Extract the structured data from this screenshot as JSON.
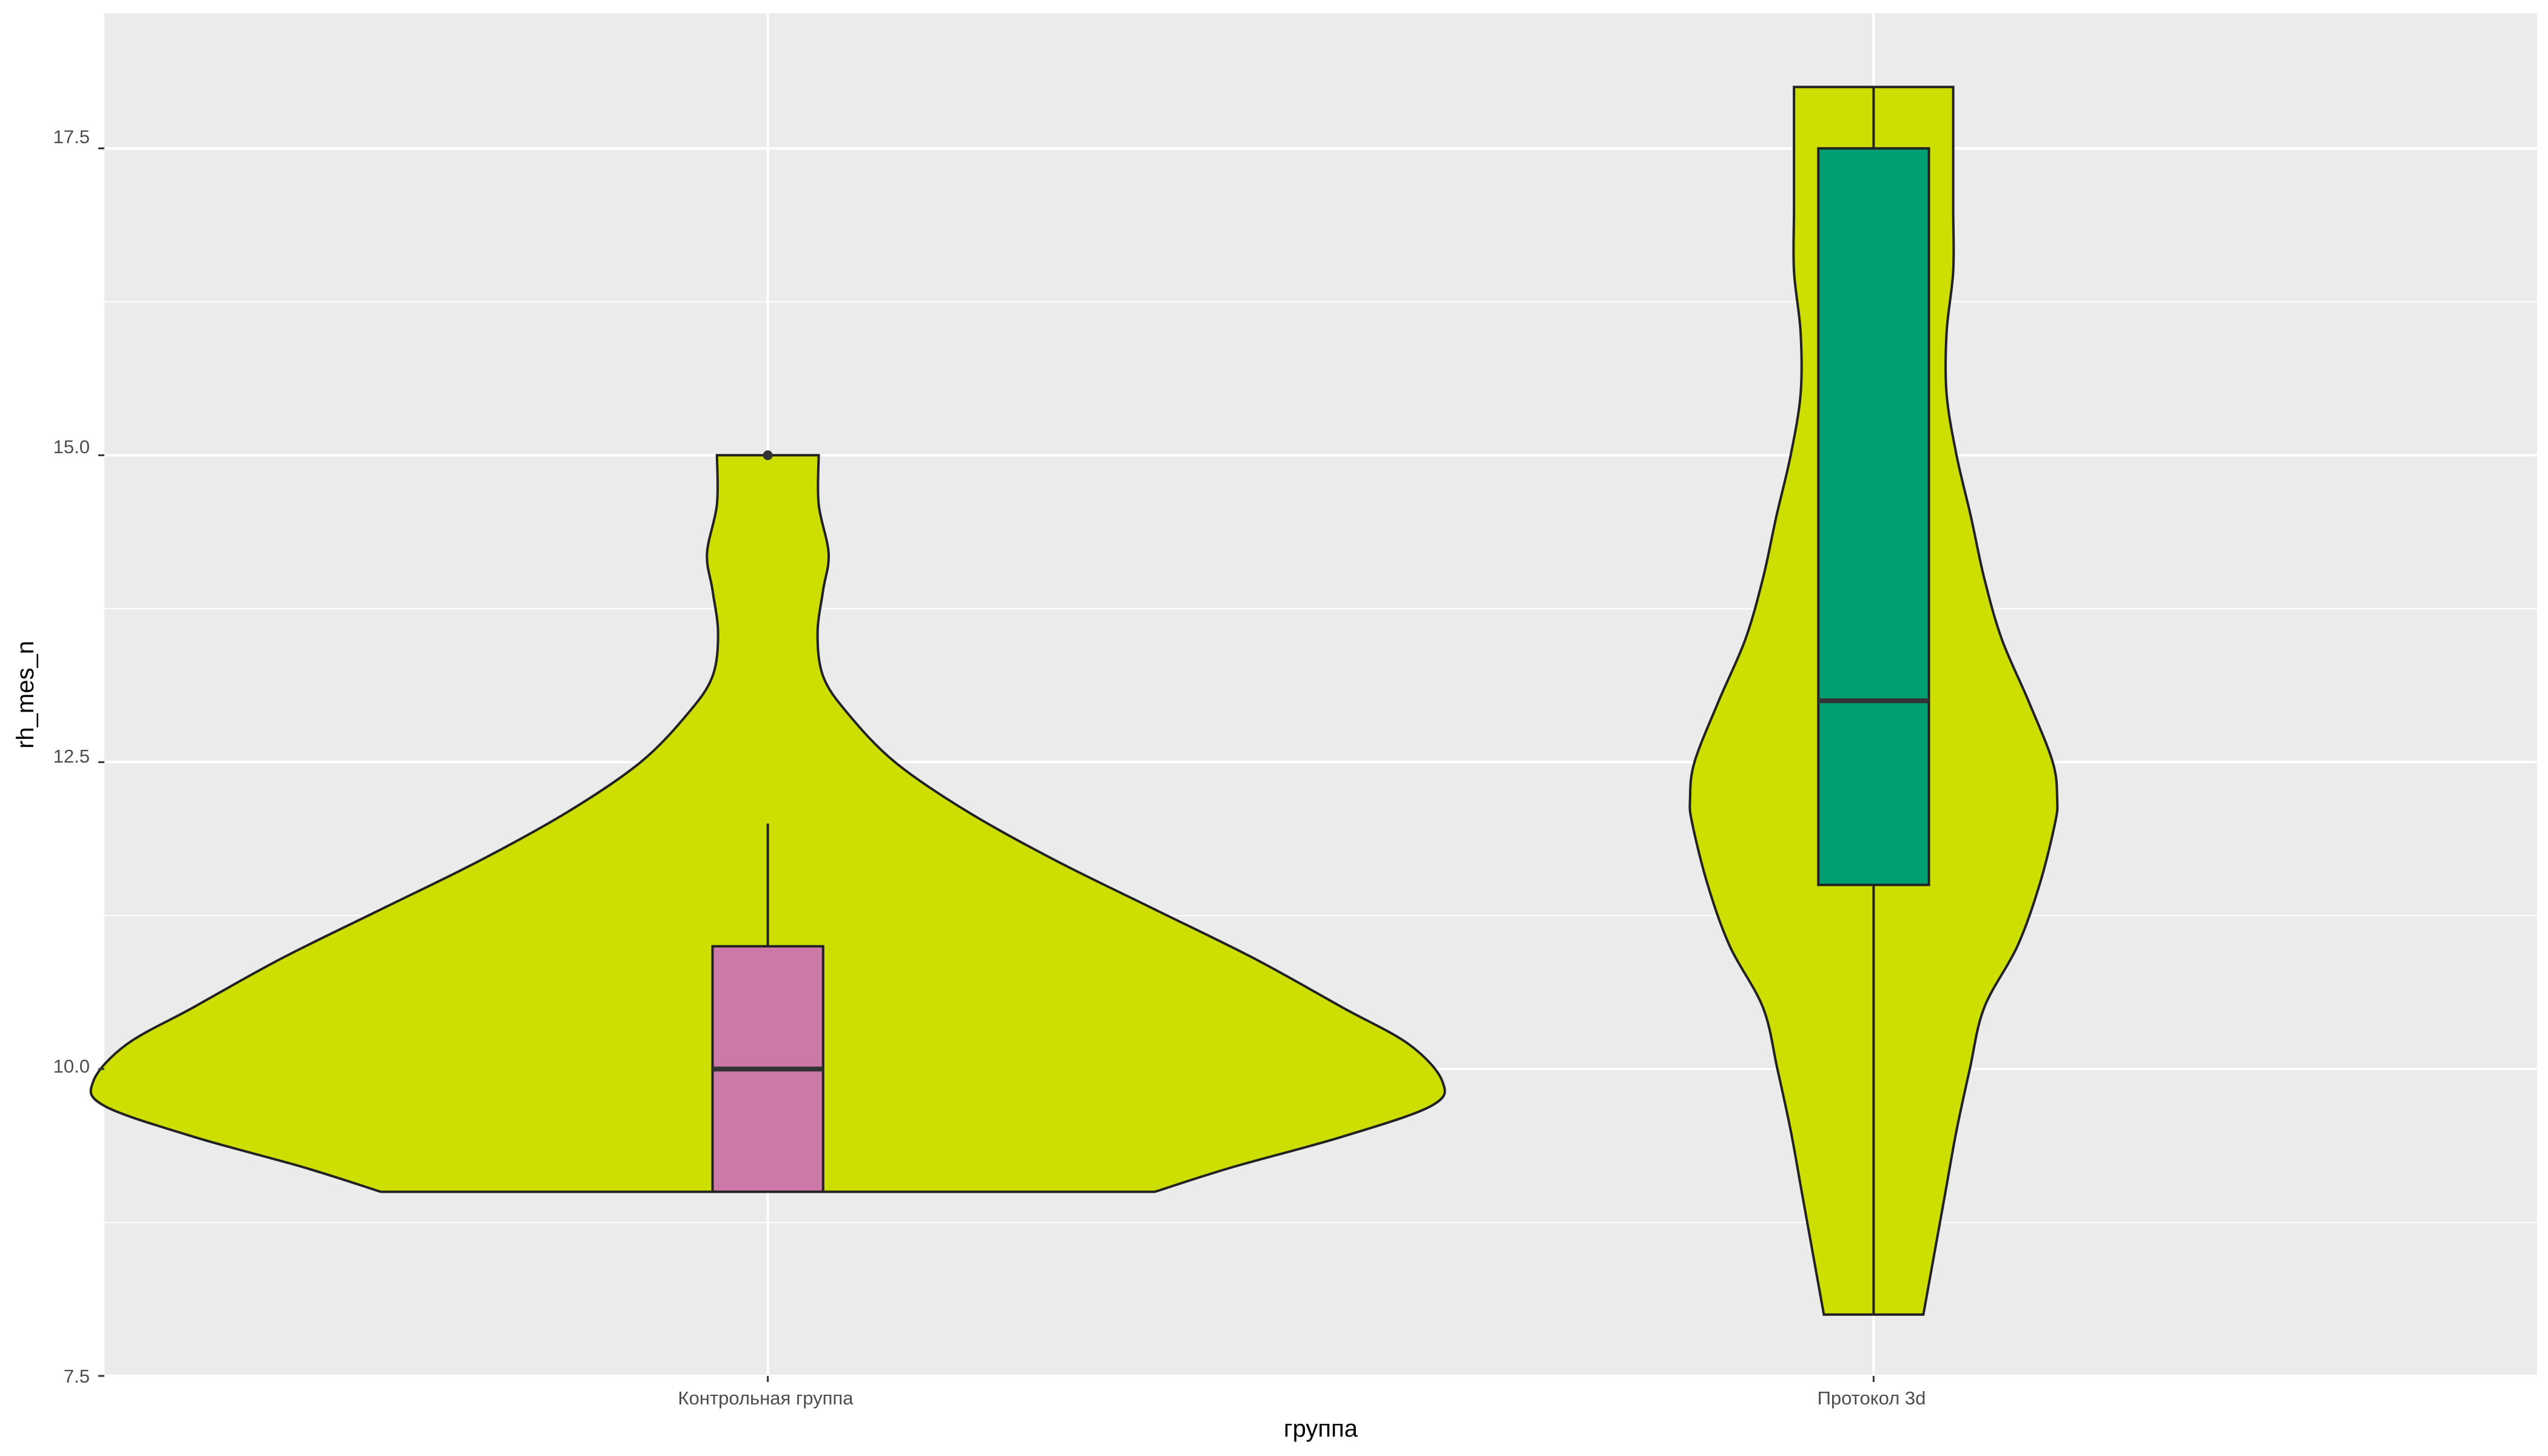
{
  "chart_data": {
    "type": "violin",
    "title": "",
    "xlabel": "группа",
    "ylabel": "rh_mes_n",
    "ylim": [
      7.5,
      18.6
    ],
    "yticks": [
      "7.5",
      "10.0",
      "12.5",
      "15.0",
      "17.5"
    ],
    "grid": true,
    "legend": "none",
    "colors": {
      "panel_bg": "#ebebeb",
      "grid": "#ffffff",
      "violin_fill": "#cddf00",
      "outline": "#222222",
      "box_control": "#cc79a7",
      "box_protocol": "#009e73"
    },
    "categories": [
      "Контрольная группа",
      "Протокол 3d"
    ],
    "groups": [
      {
        "name": "Контрольная группа",
        "violin": {
          "y": [
            9.0,
            9.2,
            9.45,
            9.7,
            9.9,
            10.2,
            10.5,
            10.9,
            11.3,
            11.7,
            12.1,
            12.5,
            12.9,
            13.2,
            13.55,
            13.9,
            14.2,
            14.6,
            15.0
          ],
          "halfwidth": [
            0.35,
            0.42,
            0.52,
            0.6,
            0.61,
            0.58,
            0.52,
            0.44,
            0.35,
            0.26,
            0.18,
            0.115,
            0.072,
            0.05,
            0.045,
            0.05,
            0.055,
            0.046,
            0.046
          ]
        },
        "box": {
          "lower_whisker": 9.0,
          "q1": 9.0,
          "median": 10.0,
          "q3": 11.0,
          "upper_whisker": 12.0
        },
        "outliers": [
          15.0
        ]
      },
      {
        "name": "Протокол 3d",
        "violin": {
          "y": [
            8.0,
            8.5,
            9.0,
            9.5,
            10.0,
            10.5,
            11.0,
            11.5,
            12.0,
            12.2,
            12.5,
            13.0,
            13.5,
            14.0,
            14.5,
            15.0,
            15.5,
            16.0,
            16.5,
            17.0,
            17.5,
            18.0
          ],
          "halfwidth": [
            0.045,
            0.055,
            0.065,
            0.075,
            0.087,
            0.1,
            0.13,
            0.15,
            0.164,
            0.166,
            0.162,
            0.14,
            0.116,
            0.1,
            0.088,
            0.075,
            0.066,
            0.066,
            0.072,
            0.072,
            0.072,
            0.072
          ]
        },
        "box": {
          "lower_whisker": 8.0,
          "q1": 11.5,
          "median": 13.0,
          "q3": 17.5,
          "upper_whisker": 18.0
        },
        "outliers": []
      }
    ]
  }
}
